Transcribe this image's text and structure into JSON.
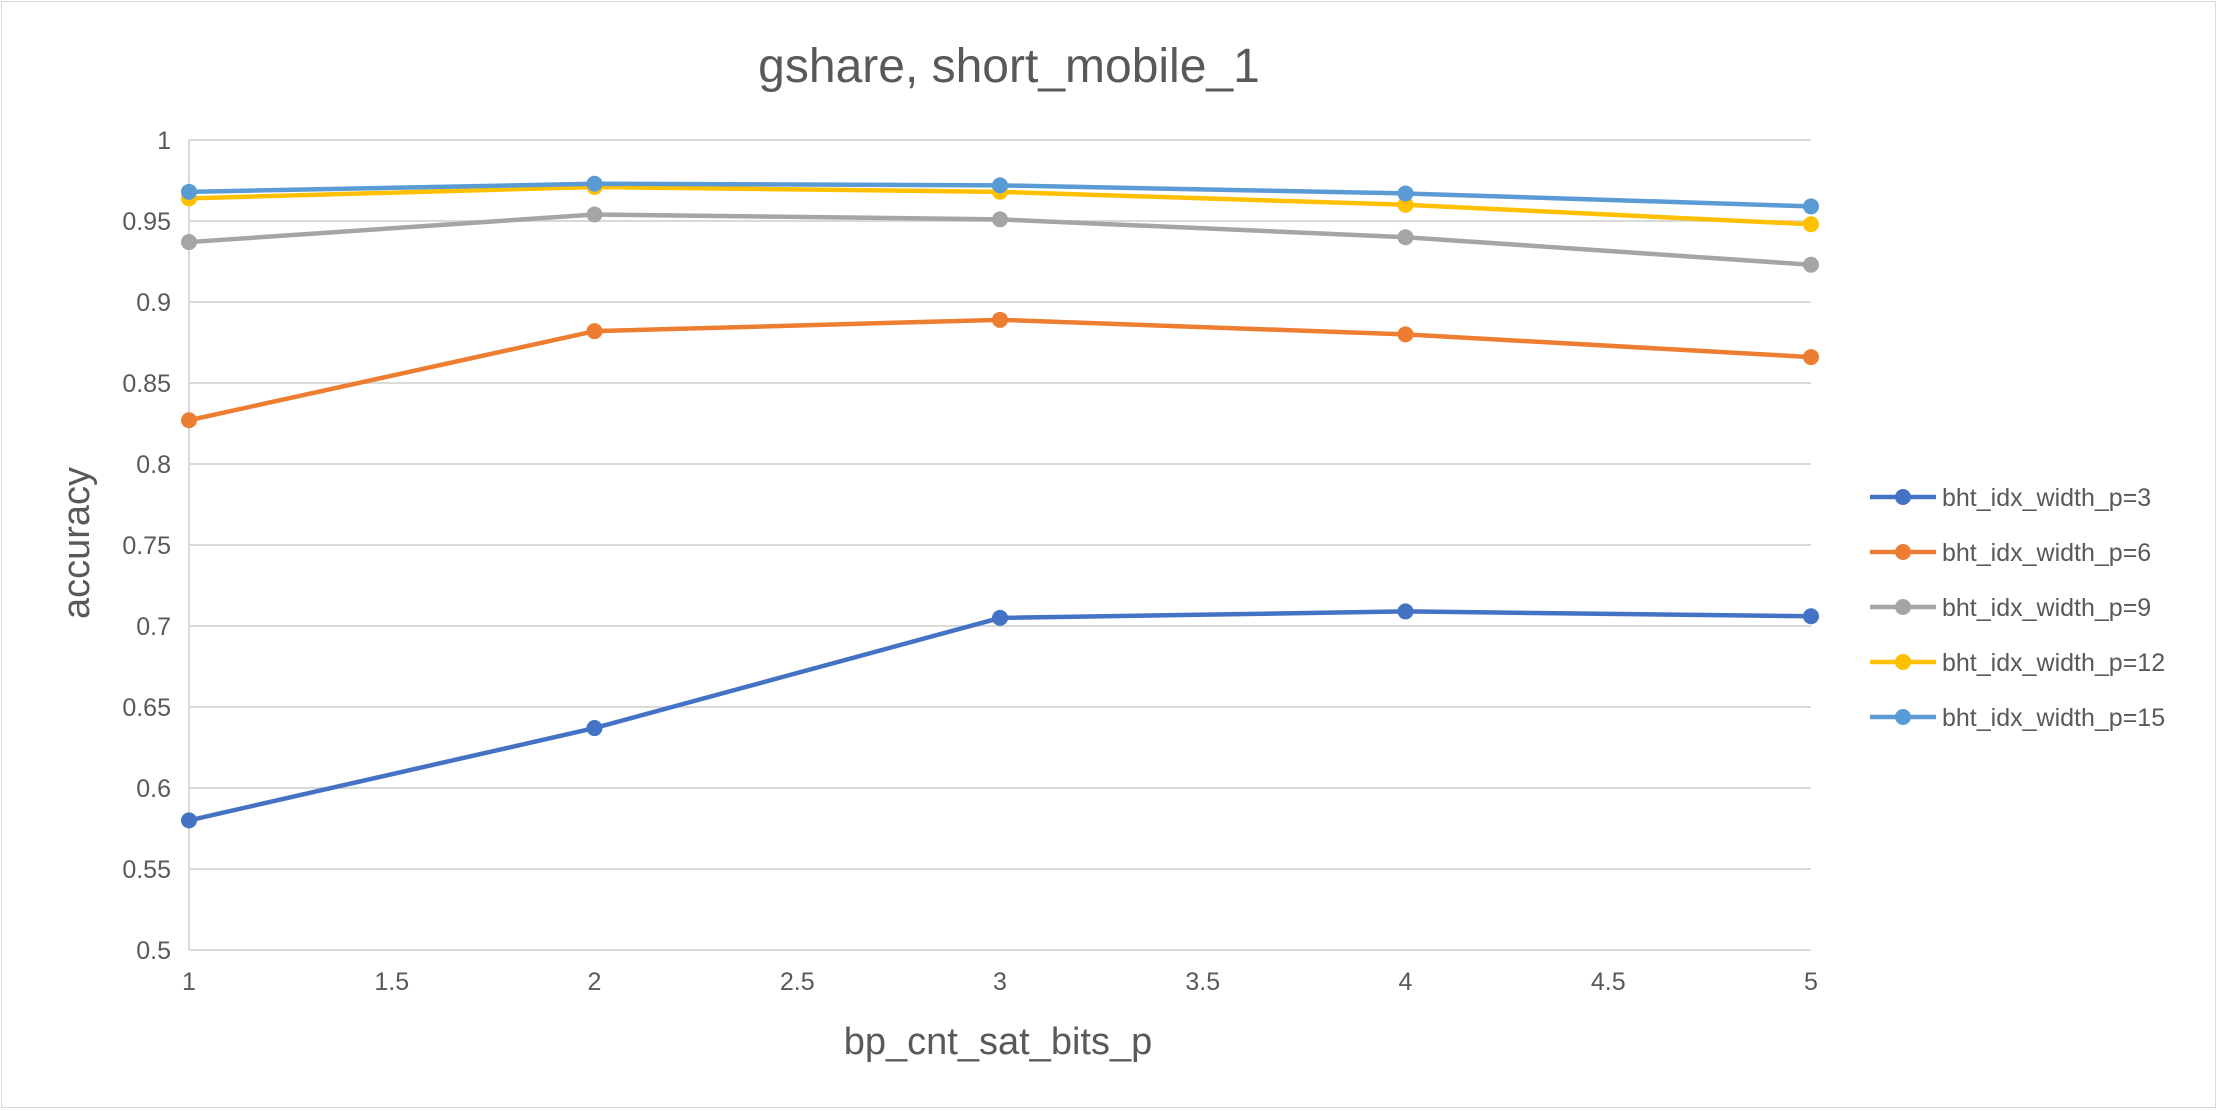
{
  "chart_data": {
    "type": "line",
    "title": "gshare, short_mobile_1",
    "xlabel": "bp_cnt_sat_bits_p",
    "ylabel": "accuracy",
    "xlim": [
      1,
      5
    ],
    "ylim": [
      0.5,
      1
    ],
    "x_ticks": [
      1,
      1.5,
      2,
      2.5,
      3,
      3.5,
      4,
      4.5,
      5
    ],
    "y_ticks": [
      0.5,
      0.55,
      0.6,
      0.65,
      0.7,
      0.75,
      0.8,
      0.85,
      0.9,
      0.95,
      1
    ],
    "x_tick_labels": [
      "1",
      "1.5",
      "2",
      "2.5",
      "3",
      "3.5",
      "4",
      "4.5",
      "5"
    ],
    "y_tick_labels": [
      "0.5",
      "0.55",
      "0.6",
      "0.65",
      "0.7",
      "0.75",
      "0.8",
      "0.85",
      "0.9",
      "0.95",
      "1"
    ],
    "grid": "horizontal",
    "legend_position": "right",
    "x": [
      1,
      2,
      3,
      4,
      5
    ],
    "series": [
      {
        "name": "bht_idx_width_p=3",
        "color": "#4472C4",
        "values": [
          0.58,
          0.637,
          0.705,
          0.709,
          0.706
        ]
      },
      {
        "name": "bht_idx_width_p=6",
        "color": "#ED7D31",
        "values": [
          0.827,
          0.882,
          0.889,
          0.88,
          0.866
        ]
      },
      {
        "name": "bht_idx_width_p=9",
        "color": "#A5A5A5",
        "values": [
          0.937,
          0.954,
          0.951,
          0.94,
          0.923
        ]
      },
      {
        "name": "bht_idx_width_p=12",
        "color": "#FFC000",
        "values": [
          0.964,
          0.971,
          0.968,
          0.96,
          0.948
        ]
      },
      {
        "name": "bht_idx_width_p=15",
        "color": "#5B9BD5",
        "values": [
          0.968,
          0.973,
          0.972,
          0.967,
          0.959
        ]
      }
    ]
  }
}
